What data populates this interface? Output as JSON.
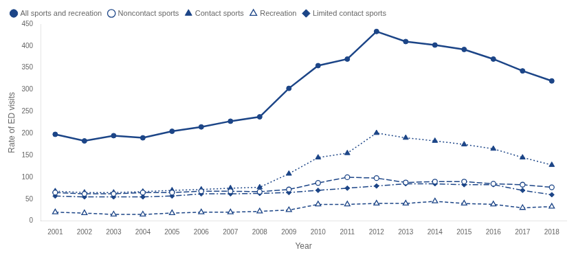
{
  "chart_data": {
    "type": "line",
    "xlabel": "Year",
    "ylabel": "Rate of ED visits",
    "x": [
      2001,
      2002,
      2003,
      2004,
      2005,
      2006,
      2007,
      2008,
      2009,
      2010,
      2011,
      2012,
      2013,
      2014,
      2015,
      2016,
      2017,
      2018
    ],
    "series": [
      {
        "name": "All sports and recreation",
        "color": "#1c4587",
        "line_style": "solid",
        "marker": "circle",
        "values": [
          198,
          183,
          195,
          190,
          205,
          215,
          228,
          238,
          303,
          355,
          370,
          433,
          410,
          402,
          392,
          370,
          343,
          320
        ]
      },
      {
        "name": "Noncontact sports",
        "color": "#1c4587",
        "line_style": "longdash",
        "marker": "circle-open",
        "values": [
          65,
          62,
          62,
          65,
          65,
          68,
          68,
          67,
          72,
          87,
          100,
          98,
          88,
          90,
          90,
          85,
          83,
          77
        ]
      },
      {
        "name": "Contact sports",
        "color": "#1c4587",
        "line_style": "dotted",
        "marker": "triangle",
        "values": [
          68,
          65,
          65,
          67,
          70,
          72,
          75,
          77,
          108,
          145,
          155,
          201,
          190,
          183,
          175,
          165,
          145,
          128
        ]
      },
      {
        "name": "Recreation",
        "color": "#1c4587",
        "line_style": "dashed",
        "marker": "triangle-open",
        "values": [
          20,
          18,
          15,
          15,
          18,
          20,
          20,
          22,
          25,
          38,
          38,
          40,
          40,
          45,
          40,
          38,
          30,
          33
        ]
      },
      {
        "name": "Limited contact sports",
        "color": "#1c4587",
        "line_style": "dashdot",
        "marker": "diamond",
        "values": [
          57,
          55,
          55,
          55,
          57,
          62,
          62,
          63,
          65,
          70,
          75,
          80,
          85,
          85,
          83,
          83,
          70,
          60
        ]
      }
    ],
    "xlim": [
      2000.5,
      2018.5
    ],
    "xticks": [
      2001,
      2002,
      2003,
      2004,
      2005,
      2006,
      2007,
      2008,
      2009,
      2010,
      2011,
      2012,
      2013,
      2014,
      2015,
      2016,
      2017,
      2018
    ],
    "ylim": [
      0,
      450
    ],
    "yticks": [
      0,
      50,
      100,
      150,
      200,
      250,
      300,
      350,
      400,
      450
    ],
    "grid": false,
    "legend": "upper left"
  }
}
